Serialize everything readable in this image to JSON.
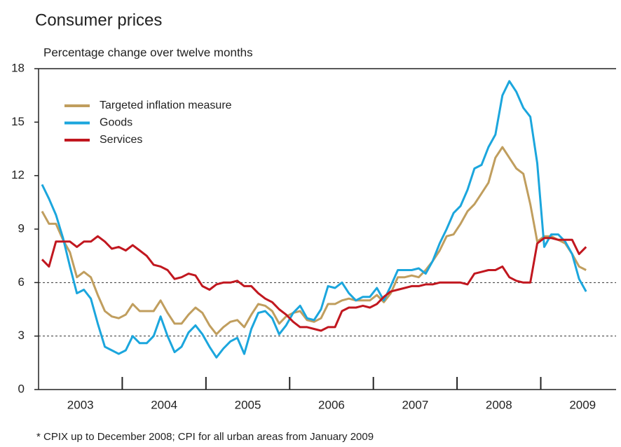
{
  "chart_data": {
    "type": "line",
    "title": "Consumer prices",
    "subtitle": "Percentage change over twelve months",
    "footnote": "* CPIX up to December 2008; CPI for all urban areas from January 2009",
    "x": [
      2003.042,
      2003.125,
      2003.208,
      2003.292,
      2003.375,
      2003.458,
      2003.542,
      2003.625,
      2003.708,
      2003.792,
      2003.875,
      2003.958,
      2004.042,
      2004.125,
      2004.208,
      2004.292,
      2004.375,
      2004.458,
      2004.542,
      2004.625,
      2004.708,
      2004.792,
      2004.875,
      2004.958,
      2005.042,
      2005.125,
      2005.208,
      2005.292,
      2005.375,
      2005.458,
      2005.542,
      2005.625,
      2005.708,
      2005.792,
      2005.875,
      2005.958,
      2006.042,
      2006.125,
      2006.208,
      2006.292,
      2006.375,
      2006.458,
      2006.542,
      2006.625,
      2006.708,
      2006.792,
      2006.875,
      2006.958,
      2007.042,
      2007.125,
      2007.208,
      2007.292,
      2007.375,
      2007.458,
      2007.542,
      2007.625,
      2007.708,
      2007.792,
      2007.875,
      2007.958,
      2008.042,
      2008.125,
      2008.208,
      2008.292,
      2008.375,
      2008.458,
      2008.542,
      2008.625,
      2008.708,
      2008.792,
      2008.875,
      2008.958,
      2009.042,
      2009.125,
      2009.208,
      2009.292,
      2009.375,
      2009.458,
      2009.542
    ],
    "series": [
      {
        "name": "Targeted inflation measure",
        "color": "#c09e5e",
        "values": [
          10.0,
          9.3,
          9.3,
          8.4,
          7.7,
          6.3,
          6.6,
          6.3,
          5.3,
          4.4,
          4.1,
          4.0,
          4.2,
          4.8,
          4.4,
          4.4,
          4.4,
          5.0,
          4.3,
          3.7,
          3.7,
          4.2,
          4.6,
          4.3,
          3.6,
          3.1,
          3.5,
          3.8,
          3.9,
          3.5,
          4.2,
          4.8,
          4.7,
          4.4,
          3.7,
          4.1,
          4.3,
          4.4,
          3.9,
          3.8,
          4.0,
          4.8,
          4.8,
          5.0,
          5.1,
          5.0,
          5.0,
          5.0,
          5.3,
          4.9,
          5.4,
          6.3,
          6.3,
          6.4,
          6.3,
          6.7,
          7.2,
          7.8,
          8.6,
          8.7,
          9.3,
          10.0,
          10.4,
          11.0,
          11.6,
          13.0,
          13.6,
          13.0,
          12.4,
          12.1,
          10.4,
          8.3,
          8.6,
          8.6,
          8.4,
          8.2,
          7.6,
          6.9,
          6.7
        ]
      },
      {
        "name": "Goods",
        "color": "#1ba6dd",
        "values": [
          11.5,
          10.7,
          9.8,
          8.5,
          6.9,
          5.4,
          5.6,
          5.1,
          3.7,
          2.4,
          2.2,
          2.0,
          2.2,
          3.0,
          2.6,
          2.6,
          3.0,
          4.1,
          3.0,
          2.1,
          2.4,
          3.2,
          3.6,
          3.1,
          2.4,
          1.8,
          2.3,
          2.7,
          2.9,
          2.0,
          3.4,
          4.3,
          4.4,
          4.0,
          3.1,
          3.6,
          4.3,
          4.7,
          4.0,
          3.9,
          4.5,
          5.8,
          5.7,
          6.0,
          5.4,
          5.0,
          5.2,
          5.2,
          5.7,
          5.0,
          5.8,
          6.7,
          6.7,
          6.7,
          6.8,
          6.5,
          7.2,
          8.2,
          9.0,
          9.9,
          10.3,
          11.2,
          12.4,
          12.6,
          13.6,
          14.3,
          16.5,
          17.3,
          16.7,
          15.8,
          15.3,
          12.7,
          8.0,
          8.7,
          8.7,
          8.3,
          7.6,
          6.2,
          5.5
        ]
      },
      {
        "name": "Services",
        "color": "#c1171f",
        "values": [
          7.3,
          6.9,
          8.3,
          8.3,
          8.3,
          8.0,
          8.3,
          8.3,
          8.6,
          8.3,
          7.9,
          8.0,
          7.8,
          8.1,
          7.8,
          7.5,
          7.0,
          6.9,
          6.7,
          6.2,
          6.3,
          6.5,
          6.4,
          5.8,
          5.6,
          5.9,
          6.0,
          6.0,
          6.1,
          5.8,
          5.8,
          5.4,
          5.1,
          4.9,
          4.5,
          4.2,
          3.8,
          3.5,
          3.5,
          3.4,
          3.3,
          3.5,
          3.5,
          4.4,
          4.6,
          4.6,
          4.7,
          4.6,
          4.8,
          5.2,
          5.5,
          5.6,
          5.7,
          5.8,
          5.8,
          5.9,
          5.9,
          6.0,
          6.0,
          6.0,
          6.0,
          5.9,
          6.5,
          6.6,
          6.7,
          6.7,
          6.9,
          6.3,
          6.1,
          6.0,
          6.0,
          8.2,
          8.5,
          8.5,
          8.4,
          8.4,
          8.4,
          7.6,
          8.0
        ]
      }
    ],
    "xlim": [
      2003,
      2009.9
    ],
    "xticks": [
      {
        "value": 2003.5,
        "label": "2003"
      },
      {
        "value": 2004.5,
        "label": "2004"
      },
      {
        "value": 2005.5,
        "label": "2005"
      },
      {
        "value": 2006.5,
        "label": "2006"
      },
      {
        "value": 2007.5,
        "label": "2007"
      },
      {
        "value": 2008.5,
        "label": "2008"
      },
      {
        "value": 2009.5,
        "label": "2009"
      }
    ],
    "x_tick_marks": [
      2004,
      2005,
      2006,
      2007,
      2008,
      2009
    ],
    "ylim": [
      0,
      18
    ],
    "yticks": [
      0,
      3,
      6,
      9,
      12,
      15,
      18
    ],
    "dashed_gridlines": [
      3,
      6
    ],
    "legend": "upper left"
  }
}
